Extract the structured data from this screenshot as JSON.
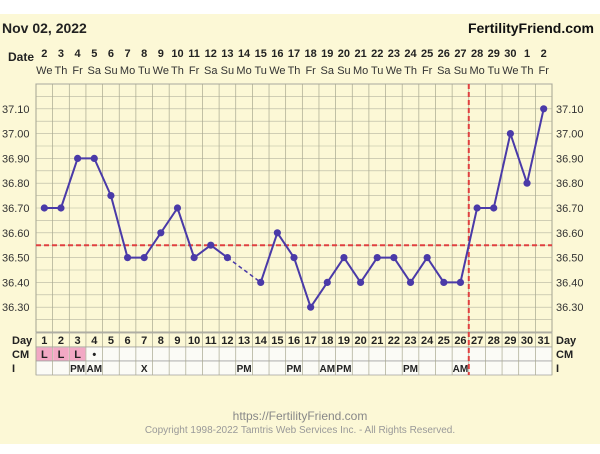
{
  "header": {
    "date": "Nov 02, 2022",
    "site": "FertilityFriend.com"
  },
  "footer": {
    "url": "https://FertilityFriend.com",
    "copyright": "Copyright 1998-2022 Tamtris Web Services Inc. - All Rights Reserved."
  },
  "colors": {
    "line": "#4a3aa8",
    "coverline": "#e04040",
    "grid": "#9a9a9a",
    "cm_highlight": "#f2a8c4",
    "background": "#fcf8d6"
  },
  "row_labels": {
    "date": "Date",
    "day": "Day",
    "cm": "CM",
    "i": "I"
  },
  "chart_data": {
    "type": "line",
    "title": "Nov 02, 2022",
    "dates": [
      "2",
      "3",
      "4",
      "5",
      "6",
      "7",
      "8",
      "9",
      "10",
      "11",
      "12",
      "13",
      "14",
      "15",
      "16",
      "17",
      "18",
      "19",
      "20",
      "21",
      "22",
      "23",
      "24",
      "25",
      "26",
      "27",
      "28",
      "29",
      "30",
      "1",
      "2"
    ],
    "weekdays": [
      "We",
      "Th",
      "Fr",
      "Sa",
      "Su",
      "Mo",
      "Tu",
      "We",
      "Th",
      "Fr",
      "Sa",
      "Su",
      "Mo",
      "Tu",
      "We",
      "Th",
      "Fr",
      "Sa",
      "Su",
      "Mo",
      "Tu",
      "We",
      "Th",
      "Fr",
      "Sa",
      "Su",
      "Mo",
      "Tu",
      "We",
      "Th",
      "Fr"
    ],
    "days": [
      1,
      2,
      3,
      4,
      5,
      6,
      7,
      8,
      9,
      10,
      11,
      12,
      13,
      14,
      15,
      16,
      17,
      18,
      19,
      20,
      21,
      22,
      23,
      24,
      25,
      26,
      27,
      28,
      29,
      30,
      31
    ],
    "temps": [
      36.7,
      36.7,
      36.9,
      36.9,
      36.75,
      36.5,
      36.5,
      36.6,
      36.7,
      36.5,
      36.55,
      36.5,
      null,
      36.4,
      36.6,
      36.5,
      36.3,
      36.4,
      36.5,
      36.4,
      36.5,
      36.5,
      36.4,
      36.5,
      36.4,
      36.4,
      36.7,
      36.7,
      37.0,
      36.8,
      37.1
    ],
    "dashed_segment": [
      12,
      14
    ],
    "ylim": [
      36.2,
      37.2
    ],
    "yticks": [
      36.3,
      36.4,
      36.5,
      36.6,
      36.7,
      36.8,
      36.9,
      37.0,
      37.1
    ],
    "ytick_labels": [
      "36.30",
      "36.40",
      "36.50",
      "36.60",
      "36.70",
      "36.80",
      "36.90",
      "37.00",
      "37.10"
    ],
    "coverline": 36.55,
    "ovulation_day": 26,
    "cm": [
      "L",
      "L",
      "L",
      "•",
      "",
      "",
      "",
      "",
      "",
      "",
      "",
      "",
      "",
      "",
      "",
      "",
      "",
      "",
      "",
      "",
      "",
      "",
      "",
      "",
      "",
      "",
      "",
      "",
      "",
      "",
      ""
    ],
    "intercourse": [
      "",
      "",
      "PM",
      "AM",
      "",
      "",
      "X",
      "",
      "",
      "",
      "",
      "",
      "PM",
      "",
      "",
      "PM",
      "",
      "AM",
      "PM",
      "",
      "",
      "",
      "PM",
      "",
      "",
      "AM",
      "",
      "",
      "",
      "",
      ""
    ]
  }
}
